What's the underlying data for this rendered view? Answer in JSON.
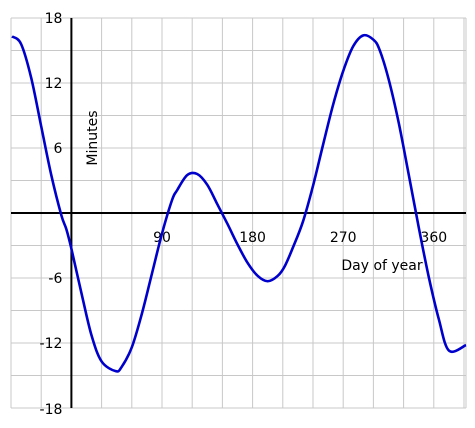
{
  "chart_data": {
    "type": "line",
    "xlabel": "Day of year",
    "ylabel": "Minutes",
    "xlim": [
      -60,
      392
    ],
    "ylim": [
      -18,
      18
    ],
    "x_ticks": [
      {
        "value": 90,
        "label": "90"
      },
      {
        "value": 180,
        "label": "180"
      },
      {
        "value": 270,
        "label": "270"
      },
      {
        "value": 360,
        "label": "360"
      }
    ],
    "y_ticks": [
      {
        "value": 18,
        "label": "18"
      },
      {
        "value": 12,
        "label": "12"
      },
      {
        "value": 6,
        "label": "6"
      },
      {
        "value": -6,
        "label": "-6"
      },
      {
        "value": -12,
        "label": "-12"
      },
      {
        "value": -18,
        "label": "-18"
      }
    ],
    "grid": true,
    "grid_x_step": 30,
    "grid_y_step": 3,
    "line_color": "#0000cc",
    "grid_color": "#c8c8c8",
    "series": [
      {
        "x": [
          -59,
          -50,
          -40,
          -30,
          -20,
          -10,
          -5,
          0,
          10,
          20,
          30,
          44,
          50,
          60,
          70,
          80,
          90,
          100,
          105,
          115,
          125,
          135,
          145,
          155,
          165,
          175,
          185,
          195,
          205,
          212,
          220,
          230,
          240,
          250,
          260,
          270,
          280,
          290,
          300,
          306,
          315,
          325,
          335,
          345,
          355,
          365,
          375,
          392
        ],
        "y": [
          16.3,
          15.6,
          12.5,
          8.0,
          3.5,
          -0.2,
          -1.5,
          -3.3,
          -7.4,
          -11.3,
          -13.7,
          -14.6,
          -14.2,
          -12.4,
          -9.3,
          -5.6,
          -1.9,
          1.2,
          2.1,
          3.5,
          3.6,
          2.6,
          0.8,
          -1.0,
          -2.9,
          -4.6,
          -5.8,
          -6.3,
          -5.8,
          -4.9,
          -3.2,
          -0.8,
          2.5,
          6.3,
          10.0,
          13.1,
          15.4,
          16.4,
          16.0,
          15.1,
          12.4,
          8.4,
          3.6,
          -1.3,
          -5.9,
          -9.8,
          -12.7,
          -12.2
        ]
      }
    ]
  }
}
